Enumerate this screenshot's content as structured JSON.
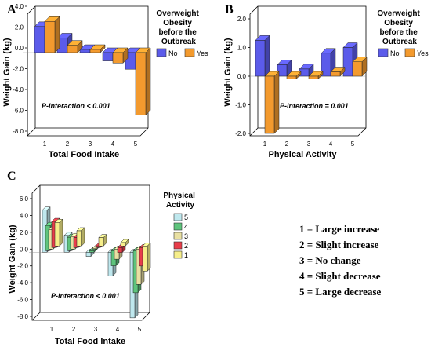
{
  "colors": {
    "no": "#5b5bea",
    "yes": "#f39a2e",
    "pa5": "#bfe8ee",
    "pa4": "#5ec47c",
    "pa3": "#e9e0a2",
    "pa2": "#e83d4a",
    "pa1": "#f6ee8a"
  },
  "chart_data": [
    {
      "panel_label": "A",
      "type": "bar",
      "title": "",
      "xlabel": "Total Food Intake",
      "ylabel": "Weight Gain (kg)",
      "ylim": [
        -8.0,
        4.0
      ],
      "yticks": [
        "4.0",
        "2.0",
        "0.0",
        "-2.0",
        "-4.0",
        "-6.0",
        "-8.0"
      ],
      "categories": [
        "1",
        "2",
        "3",
        "4",
        "5"
      ],
      "legend_title": "Overweight Obesity before the Outbreak",
      "legend_title_lines": [
        "Overweight",
        "Obesity",
        "before the",
        "Outbreak"
      ],
      "series": [
        {
          "name": "No",
          "values": [
            2.5,
            1.4,
            0.3,
            -0.8,
            -1.6
          ]
        },
        {
          "name": "Yes",
          "values": [
            3.0,
            0.7,
            0.3,
            -1.0,
            -6.0
          ]
        }
      ],
      "annotation": "P-interaction < 0.001"
    },
    {
      "panel_label": "B",
      "type": "bar",
      "title": "",
      "xlabel": "Physical Activity",
      "ylabel": "Weight Gain (kg)",
      "ylim": [
        -2.0,
        2.0
      ],
      "yticks": [
        "2.0",
        "1.0",
        "0.0",
        "-1.0",
        "-2.0"
      ],
      "categories": [
        "1",
        "2",
        "3",
        "4",
        "5"
      ],
      "legend_title": "Overweight Obesity before the Outbreak",
      "legend_title_lines": [
        "Overweight",
        "Obesity",
        "before the",
        "Outbreak"
      ],
      "series": [
        {
          "name": "No",
          "values": [
            1.25,
            0.4,
            0.25,
            0.8,
            1.0
          ]
        },
        {
          "name": "Yes",
          "values": [
            -2.0,
            -0.1,
            -0.1,
            0.15,
            0.5
          ]
        }
      ],
      "annotation": "P-interaction = 0.001"
    },
    {
      "panel_label": "C",
      "type": "bar",
      "title": "",
      "xlabel": "Total Food Intake",
      "ylabel": "Weight Gain (kg)",
      "ylim": [
        -8.0,
        6.0
      ],
      "yticks": [
        "6.0",
        "4.0",
        "2.0",
        "0.0",
        "-2.0",
        "-4.0",
        "-6.0",
        "-8.0"
      ],
      "categories": [
        "1",
        "2",
        "3",
        "4",
        "5"
      ],
      "legend_title": "Physical Activity",
      "legend_title_lines": [
        "Physical",
        "Activity"
      ],
      "series": [
        {
          "name": "5",
          "values": [
            5.0,
            2.0,
            -0.5,
            -2.8,
            -7.8
          ]
        },
        {
          "name": "4",
          "values": [
            3.0,
            1.6,
            -0.2,
            -1.8,
            -5.0
          ]
        },
        {
          "name": "3",
          "values": [
            2.3,
            1.5,
            0.1,
            -1.2,
            -4.2
          ]
        },
        {
          "name": "2",
          "values": [
            3.1,
            1.2,
            0.2,
            -0.6,
            -2.2
          ]
        },
        {
          "name": "1",
          "values": [
            2.8,
            1.8,
            1.0,
            0.4,
            -3.0
          ]
        }
      ],
      "annotation": "P-interaction < 0.001"
    }
  ],
  "key": {
    "items": [
      "1 = Large increase",
      "2 = Slight increase",
      "3 = No change",
      "4 = Slight decrease",
      "5 = Large decrease"
    ]
  }
}
